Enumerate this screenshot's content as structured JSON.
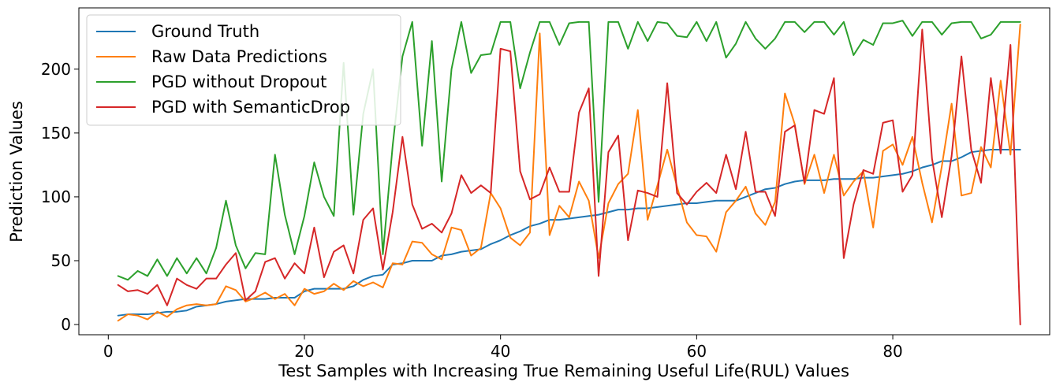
{
  "chart_data": {
    "type": "line",
    "xlabel": "Test Samples with Increasing True Remaining Useful Life(RUL) Values",
    "ylabel": "Prediction Values",
    "xlim": [
      -3,
      96
    ],
    "ylim": [
      -8,
      248
    ],
    "xticks": [
      0,
      20,
      40,
      60,
      80
    ],
    "yticks": [
      0,
      50,
      100,
      150,
      200
    ],
    "grid": false,
    "legend_position": "top-left",
    "x": [
      1,
      2,
      3,
      4,
      5,
      6,
      7,
      8,
      9,
      10,
      11,
      12,
      13,
      14,
      15,
      16,
      17,
      18,
      19,
      20,
      21,
      22,
      23,
      24,
      25,
      26,
      27,
      28,
      29,
      30,
      31,
      32,
      33,
      34,
      35,
      36,
      37,
      38,
      39,
      40,
      41,
      42,
      43,
      44,
      45,
      46,
      47,
      48,
      49,
      50,
      51,
      52,
      53,
      54,
      55,
      56,
      57,
      58,
      59,
      60,
      61,
      62,
      63,
      64,
      65,
      66,
      67,
      68,
      69,
      70,
      71,
      72,
      73,
      74,
      75,
      76,
      77,
      78,
      79,
      80,
      81,
      82,
      83,
      84,
      85,
      86,
      87,
      88,
      89,
      90,
      91,
      92,
      93
    ],
    "series": [
      {
        "name": "Ground Truth",
        "color": "#1f77b4",
        "values": [
          7,
          8,
          8,
          8,
          9,
          10,
          10,
          11,
          14,
          15,
          16,
          18,
          19,
          20,
          20,
          20,
          21,
          21,
          21,
          26,
          28,
          28,
          28,
          28,
          30,
          35,
          38,
          39,
          47,
          48,
          50,
          50,
          50,
          54,
          55,
          57,
          58,
          59,
          63,
          66,
          70,
          73,
          77,
          79,
          82,
          82,
          83,
          84,
          85,
          86,
          88,
          90,
          90,
          91,
          91,
          92,
          93,
          94,
          95,
          95,
          96,
          97,
          97,
          97,
          100,
          103,
          106,
          107,
          110,
          112,
          113,
          113,
          113,
          114,
          114,
          114,
          115,
          115,
          116,
          117,
          118,
          120,
          123,
          125,
          128,
          128,
          131,
          135,
          136,
          137,
          137,
          137,
          137
        ]
      },
      {
        "name": "Raw Data Predictions",
        "color": "#ff7f0e",
        "values": [
          3,
          8,
          7,
          4,
          10,
          6,
          12,
          15,
          16,
          15,
          16,
          30,
          27,
          18,
          21,
          25,
          20,
          24,
          15,
          28,
          24,
          26,
          32,
          27,
          34,
          30,
          33,
          29,
          48,
          47,
          65,
          64,
          55,
          51,
          76,
          74,
          54,
          60,
          103,
          91,
          68,
          62,
          72,
          228,
          70,
          93,
          84,
          112,
          97,
          52,
          95,
          110,
          118,
          168,
          82,
          109,
          137,
          108,
          80,
          70,
          69,
          57,
          88,
          97,
          108,
          87,
          78,
          96,
          181,
          157,
          110,
          133,
          103,
          133,
          101,
          112,
          120,
          76,
          136,
          141,
          125,
          147,
          111,
          80,
          124,
          173,
          101,
          103,
          139,
          123,
          191,
          133,
          235
        ]
      },
      {
        "name": "PGD without Dropout",
        "color": "#2ca02c",
        "values": [
          38,
          35,
          42,
          38,
          51,
          38,
          52,
          40,
          52,
          40,
          60,
          97,
          62,
          44,
          56,
          55,
          133,
          86,
          55,
          85,
          127,
          100,
          85,
          205,
          86,
          165,
          200,
          55,
          140,
          210,
          237,
          140,
          222,
          112,
          200,
          237,
          197,
          211,
          212,
          237,
          237,
          185,
          213,
          237,
          237,
          219,
          236,
          237,
          237,
          96,
          237,
          237,
          216,
          237,
          222,
          237,
          236,
          226,
          225,
          237,
          222,
          237,
          209,
          220,
          237,
          224,
          216,
          224,
          237,
          237,
          229,
          237,
          237,
          227,
          237,
          211,
          223,
          219,
          236,
          236,
          238,
          226,
          237,
          237,
          227,
          236,
          237,
          237,
          224,
          227,
          237,
          237,
          237
        ]
      },
      {
        "name": "PGD with SemanticDrop",
        "color": "#d62728",
        "values": [
          31,
          26,
          27,
          24,
          31,
          15,
          36,
          31,
          28,
          36,
          36,
          47,
          56,
          19,
          26,
          49,
          52,
          36,
          48,
          40,
          76,
          37,
          57,
          62,
          40,
          82,
          91,
          43,
          88,
          147,
          94,
          75,
          79,
          72,
          87,
          117,
          103,
          109,
          103,
          216,
          214,
          120,
          98,
          102,
          123,
          104,
          104,
          166,
          185,
          38,
          135,
          148,
          66,
          105,
          103,
          100,
          189,
          103,
          94,
          104,
          111,
          103,
          133,
          106,
          151,
          104,
          104,
          85,
          151,
          156,
          111,
          168,
          165,
          193,
          52,
          94,
          121,
          118,
          158,
          160,
          104,
          117,
          231,
          130,
          84,
          132,
          210,
          137,
          111,
          193,
          134,
          219,
          0
        ]
      }
    ]
  }
}
